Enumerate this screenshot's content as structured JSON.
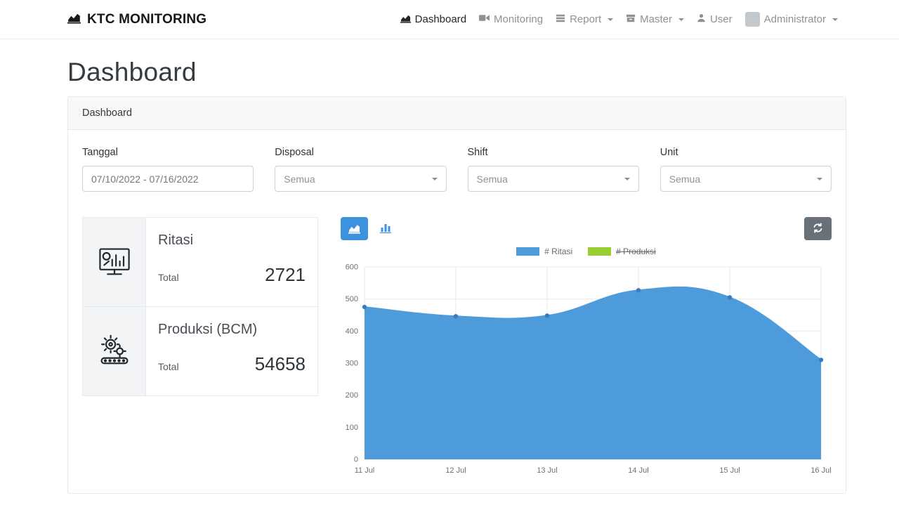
{
  "brand": {
    "title": "KTC MONITORING",
    "icon": "chart-area-icon"
  },
  "nav": {
    "items": [
      {
        "label": "Dashboard",
        "icon": "chart-area-icon",
        "active": true,
        "caret": false
      },
      {
        "label": "Monitoring",
        "icon": "video-camera-icon",
        "active": false,
        "caret": false
      },
      {
        "label": "Report",
        "icon": "report-list-icon",
        "active": false,
        "caret": true
      },
      {
        "label": "Master",
        "icon": "master-box-icon",
        "active": false,
        "caret": true
      },
      {
        "label": "User",
        "icon": "user-icon",
        "active": false,
        "caret": false
      },
      {
        "label": "Administrator",
        "icon": "avatar",
        "active": false,
        "caret": true
      }
    ]
  },
  "page": {
    "title": "Dashboard"
  },
  "card": {
    "header": "Dashboard"
  },
  "filters": {
    "tanggal": {
      "label": "Tanggal",
      "value": "07/10/2022 - 07/16/2022"
    },
    "disposal": {
      "label": "Disposal",
      "value": "Semua"
    },
    "shift": {
      "label": "Shift",
      "value": "Semua"
    },
    "unit": {
      "label": "Unit",
      "value": "Semua"
    }
  },
  "stats": [
    {
      "title": "Ritasi",
      "total_label": "Total",
      "value": "2721",
      "icon": "monitor-chart-icon"
    },
    {
      "title": "Produksi (BCM)",
      "total_label": "Total",
      "value": "54658",
      "icon": "machine-gear-icon"
    }
  ],
  "chart_controls": {
    "toggles": [
      "area-chart-toggle-icon",
      "bar-chart-toggle-icon"
    ],
    "refresh": "refresh-icon"
  },
  "colors": {
    "primary": "#3d92dd",
    "secondary_button": "#6a7077",
    "series_blue": "#4e9bdb",
    "series_green": "#9acd32",
    "grid": "#e9e9e9",
    "tick_text": "#6c7177"
  },
  "chart_data": {
    "type": "area",
    "x": [
      "11 Jul",
      "12 Jul",
      "13 Jul",
      "14 Jul",
      "15 Jul",
      "16 Jul"
    ],
    "series": [
      {
        "name": "# Ritasi",
        "color": "#4e9bdb",
        "point_color": "#3a7cbe",
        "values": [
          475,
          446,
          448,
          527,
          505,
          310
        ],
        "hidden": false
      },
      {
        "name": "# Produksi",
        "color": "#9acd32",
        "values": [],
        "hidden": true
      }
    ],
    "ylim": [
      0,
      600
    ],
    "yticks": [
      0,
      100,
      200,
      300,
      400,
      500,
      600
    ],
    "legend_position": "top",
    "grid": true
  }
}
